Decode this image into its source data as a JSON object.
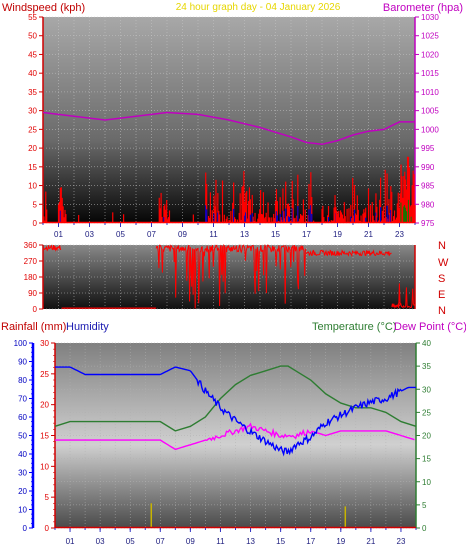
{
  "header": {
    "left": "Windspeed (kph)",
    "center": "24 hour graph day - 04 January 2026",
    "right": "Barometer (hpa)"
  },
  "direction_letters": [
    "N",
    "W",
    "S",
    "E",
    "N"
  ],
  "bottom_titles": {
    "rainfall": "Rainfall (mm)",
    "humidity": "Humidity",
    "temperature": "Temperature (°C)",
    "dewpoint": "Dew Point (°C)"
  },
  "colors": {
    "wind": "#ff0000",
    "gust_dark": "#0000cc",
    "wind_green": "#008000",
    "barometer": "#c000c0",
    "direction": "#ff0000",
    "temperature": "#2e7d32",
    "humidity": "#0000ff",
    "dewpoint": "#ff00ff",
    "rain": "#c8b400",
    "axis_text_left": "#e00000",
    "axis_text_right": "#c000c0",
    "title": "#e6d600"
  },
  "chart_data": [
    {
      "type": "line",
      "name": "wind-barometer",
      "x_ticks": [
        "01",
        "03",
        "05",
        "07",
        "09",
        "11",
        "13",
        "15",
        "17",
        "19",
        "21",
        "23"
      ],
      "y_left": {
        "label": "Windspeed (kph)",
        "ticks": [
          0,
          5,
          10,
          15,
          20,
          25,
          30,
          35,
          40,
          45,
          50,
          55
        ],
        "range": [
          0,
          55
        ]
      },
      "y_right": {
        "label": "Barometer (hpa)",
        "ticks": [
          975,
          980,
          985,
          990,
          995,
          1000,
          1005,
          1010,
          1015,
          1020,
          1025,
          1030
        ],
        "range": [
          975,
          1030
        ]
      },
      "barometer": {
        "x": [
          0,
          2,
          4,
          6,
          8,
          10,
          12,
          14,
          16,
          17,
          18,
          19,
          20,
          21,
          22,
          23,
          24
        ],
        "y": [
          1004.5,
          1003.5,
          1002.5,
          1003.5,
          1004.5,
          1004,
          1002.5,
          1000.5,
          998,
          996.5,
          996,
          997,
          998.5,
          999.5,
          1000,
          1002,
          1002
        ]
      },
      "wind_activity_hours": [
        [
          0,
          0.3
        ],
        [
          1,
          1.5
        ],
        [
          7.5,
          8.2
        ],
        [
          10.5,
          17.5
        ],
        [
          18,
          24
        ]
      ],
      "wind_peak_kph": 18
    },
    {
      "type": "scatter",
      "name": "wind-direction",
      "y_ticks": [
        0,
        90,
        180,
        270,
        360
      ],
      "y_range": [
        0,
        360
      ],
      "segments": [
        {
          "x": [
            0,
            1.2
          ],
          "y": [
            330,
            360
          ]
        },
        {
          "x": [
            7.3,
            17
          ],
          "y": [
            320,
            360
          ]
        },
        {
          "x": [
            17,
            22.5
          ],
          "y": [
            300,
            330
          ]
        },
        {
          "x": [
            22.5,
            24
          ],
          "y": [
            0,
            30
          ]
        }
      ]
    },
    {
      "type": "line",
      "name": "temp-humidity-rain",
      "x_ticks": [
        "01",
        "03",
        "05",
        "07",
        "09",
        "11",
        "13",
        "15",
        "17",
        "19",
        "21",
        "23"
      ],
      "y_humidity": {
        "label": "Humidity",
        "ticks": [
          0,
          10,
          20,
          30,
          40,
          50,
          60,
          70,
          80,
          90,
          100
        ],
        "range": [
          0,
          100
        ]
      },
      "y_rain": {
        "label": "Rainfall (mm)",
        "ticks": [
          0,
          5,
          10,
          15,
          20,
          25,
          30
        ],
        "range": [
          0,
          30
        ]
      },
      "y_temp": {
        "label": "Temperature (°C)",
        "ticks": [
          0,
          5,
          10,
          15,
          20,
          25,
          30,
          35,
          40
        ],
        "range": [
          0,
          40
        ]
      },
      "temperature": {
        "x": [
          0,
          1,
          7,
          8,
          9,
          10,
          11,
          12,
          13,
          14,
          15,
          15.5,
          16,
          17,
          18,
          19,
          20,
          21,
          22,
          23,
          24
        ],
        "y": [
          22,
          23,
          23,
          21,
          22,
          24,
          28,
          31,
          33,
          34,
          35,
          35,
          34,
          32,
          29,
          27,
          26,
          26,
          25,
          23,
          22
        ]
      },
      "humidity": {
        "x": [
          0,
          1,
          2,
          7,
          8,
          9,
          10,
          11,
          12,
          13,
          14,
          15,
          15.5,
          16,
          17,
          18,
          19,
          20,
          21,
          22,
          23,
          23.5,
          24
        ],
        "y": [
          87,
          87,
          83,
          83,
          87,
          85,
          74,
          65,
          58,
          52,
          47,
          42,
          41,
          45,
          49,
          57,
          61,
          65,
          68,
          70,
          74,
          76,
          76
        ]
      },
      "dewpoint": {
        "x": [
          0,
          7,
          8,
          9,
          10,
          11,
          12,
          13,
          14,
          15,
          16,
          17,
          18,
          19,
          20,
          21,
          22,
          23,
          24
        ],
        "y": [
          19,
          19,
          17,
          18,
          19,
          20,
          21,
          22,
          21,
          20,
          20,
          21,
          20,
          21,
          21,
          21,
          21,
          20,
          19
        ]
      },
      "rain": {
        "x": [
          6.4,
          19.3
        ],
        "y": [
          4,
          3.5
        ]
      }
    }
  ]
}
